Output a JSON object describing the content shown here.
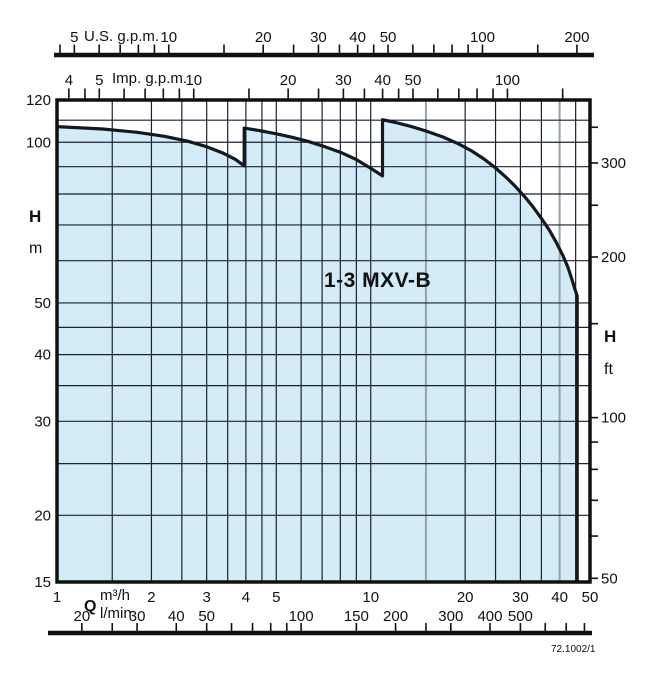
{
  "chart_data": {
    "type": "area",
    "title": "1-3 MXV-B",
    "code": "72.1002/1",
    "x_axis": {
      "label": "Q",
      "unit_m3h": "m³/h",
      "unit_lmin": "l/min",
      "scale": "log",
      "range_m3h": [
        1,
        50
      ],
      "m3h_labeled": [
        1,
        2,
        3,
        4,
        5,
        10,
        20,
        30,
        40,
        50
      ],
      "lmin": {
        "to_m3h": 0.06,
        "ticks": [
          20,
          25,
          30,
          40,
          50,
          60,
          70,
          80,
          90,
          100,
          150,
          200,
          250,
          300,
          400,
          500,
          600,
          700,
          800
        ],
        "labeled": [
          20,
          30,
          40,
          50,
          100,
          150,
          200,
          300,
          400,
          500
        ]
      }
    },
    "top_axes": {
      "us_gpm": {
        "label": "U.S. g.p.m.",
        "to_m3h": 0.227125,
        "ticks": [
          4.5,
          5,
          6,
          7,
          8,
          9,
          10,
          15,
          20,
          25,
          30,
          35,
          40,
          45,
          50,
          60,
          70,
          80,
          90,
          100,
          150,
          200
        ],
        "labeled": [
          5,
          10,
          20,
          30,
          40,
          50,
          100,
          200
        ]
      },
      "imp_gpm": {
        "label": "Imp. g.p.m.",
        "to_m3h": 0.272766,
        "ticks": [
          4,
          4.5,
          5,
          6,
          7,
          8,
          9,
          10,
          15,
          20,
          25,
          30,
          35,
          40,
          45,
          50,
          60,
          70,
          80,
          90,
          100,
          150
        ],
        "labeled": [
          4,
          5,
          10,
          20,
          30,
          40,
          50,
          100
        ]
      }
    },
    "y_axis": {
      "label": "H",
      "unit": "m",
      "scale": "log",
      "range_m": [
        15,
        120
      ],
      "labeled": [
        120,
        100,
        50,
        40,
        30,
        20,
        15
      ],
      "gridlines": [
        20,
        25,
        30,
        35,
        40,
        45,
        50,
        60,
        70,
        80,
        90,
        100,
        110
      ]
    },
    "y_axis_right": {
      "label": "H",
      "unit": "ft",
      "range_ft": [
        49.21,
        393.7
      ],
      "ticks": [
        50,
        60,
        70,
        80,
        90,
        100,
        150,
        200,
        250,
        300,
        350
      ],
      "labeled": [
        50,
        100,
        200,
        300
      ]
    },
    "grid": {
      "vertical_m3h": [
        1.5,
        2,
        2.5,
        3,
        3.5,
        4,
        4.5,
        5,
        6,
        7,
        8,
        9,
        10,
        15,
        20,
        25,
        30,
        35,
        40,
        45
      ],
      "gray_vertical_m3h": [
        15,
        40
      ]
    },
    "envelope_m3h_m": [
      [
        1,
        107
      ],
      [
        1.4,
        105.9
      ],
      [
        1.8,
        104.4
      ],
      [
        2.2,
        102.6
      ],
      [
        2.6,
        100.5
      ],
      [
        3.0,
        98.1
      ],
      [
        3.4,
        95.3
      ],
      [
        3.7,
        92.9
      ],
      [
        3.95,
        90.3
      ],
      [
        3.95,
        106.3
      ],
      [
        4.4,
        105.2
      ],
      [
        5,
        103.7
      ],
      [
        5.6,
        102.2
      ],
      [
        6.3,
        100.4
      ],
      [
        7,
        98.5
      ],
      [
        8,
        95.8
      ],
      [
        9,
        92.8
      ],
      [
        10,
        89.4
      ],
      [
        10.9,
        86.5
      ],
      [
        10.9,
        110.2
      ],
      [
        12,
        108.9
      ],
      [
        13.5,
        107
      ],
      [
        15,
        105
      ],
      [
        17,
        102.3
      ],
      [
        19,
        99.4
      ],
      [
        21,
        96.3
      ],
      [
        23,
        93
      ],
      [
        25,
        89.5
      ],
      [
        27,
        86
      ],
      [
        29,
        82.5
      ],
      [
        31,
        79
      ],
      [
        33,
        75.5
      ],
      [
        35,
        72
      ],
      [
        37,
        68.6
      ],
      [
        39,
        65
      ],
      [
        41,
        61.3
      ],
      [
        42.5,
        58.3
      ],
      [
        43.8,
        55.3
      ],
      [
        44.8,
        53
      ],
      [
        45.5,
        51.5
      ],
      [
        45.5,
        15
      ]
    ],
    "colors": {
      "fill": "#d2ebf7",
      "curve": "#14181f",
      "grid": "#1a2230",
      "gray_grid": "#93a3ae",
      "axis": "#111111"
    }
  }
}
